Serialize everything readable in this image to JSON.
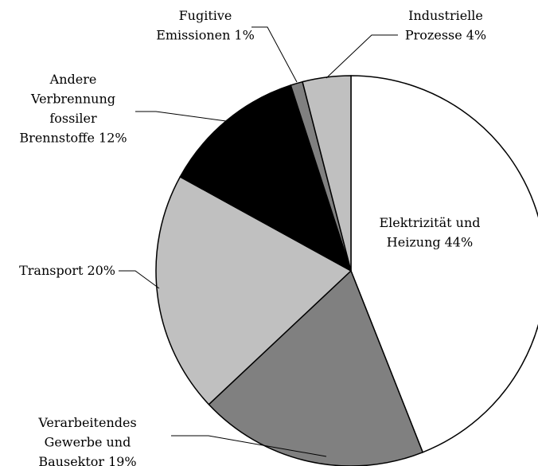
{
  "chart_data": {
    "type": "pie",
    "categories": [
      "Elektrizität und\nHeizung",
      "Verarbeitendes\nGewerbe und\nBausektor",
      "Transport",
      "Andere\nVerbrennung\nfossiler\nBrennstoffe",
      "Fugitive\nEmissionen",
      "Industrielle\nProzesse"
    ],
    "values": [
      44,
      19,
      20,
      12,
      1,
      4
    ],
    "value_labels": [
      "44%",
      "19%",
      "20%",
      "12%",
      "1%",
      "4%"
    ],
    "colors": [
      "#ffffff",
      "#808080",
      "#c0c0c0",
      "#000000",
      "#808080",
      "#c0c0c0"
    ]
  }
}
